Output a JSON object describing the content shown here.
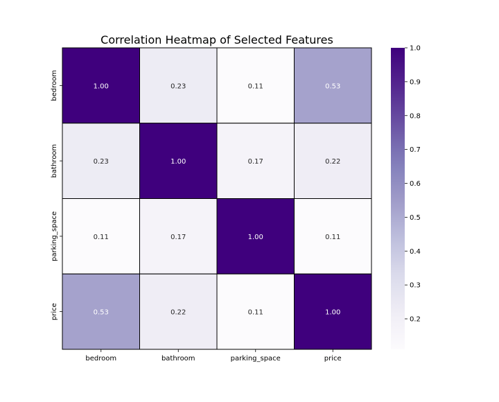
{
  "chart_data": {
    "type": "heatmap",
    "title": "Correlation Heatmap of Selected Features",
    "x_labels": [
      "bedroom",
      "bathroom",
      "parking_space",
      "price"
    ],
    "y_labels": [
      "bedroom",
      "bathroom",
      "parking_space",
      "price"
    ],
    "values": [
      [
        1.0,
        0.23,
        0.11,
        0.53
      ],
      [
        0.23,
        1.0,
        0.17,
        0.22
      ],
      [
        0.11,
        0.17,
        1.0,
        0.11
      ],
      [
        0.53,
        0.22,
        0.11,
        1.0
      ]
    ],
    "value_format": "0.00",
    "colormap": "Purples",
    "vmin": 0.11,
    "vmax": 1.0,
    "colorbar_ticks": [
      0.2,
      0.3,
      0.4,
      0.5,
      0.6,
      0.7,
      0.8,
      0.9,
      1.0
    ],
    "colorbar_tick_labels": [
      "0.2",
      "0.3",
      "0.4",
      "0.5",
      "0.6",
      "0.7",
      "0.8",
      "0.9",
      "1.0"
    ],
    "cell_border_color": "#000000",
    "annotation_color_dark": "#ffffff",
    "annotation_color_light": "#262626"
  }
}
